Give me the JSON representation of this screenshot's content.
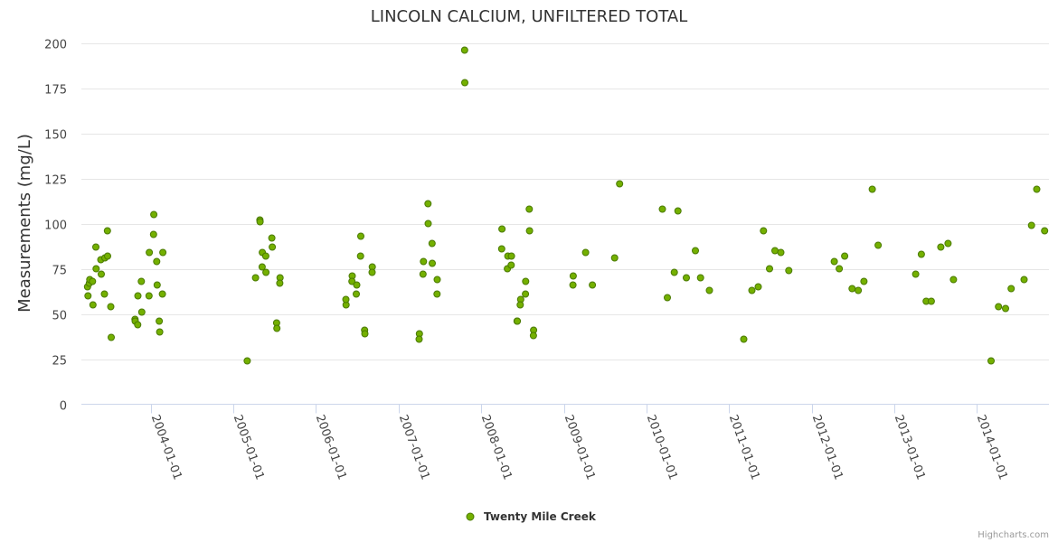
{
  "colors": {
    "marker_fill": "#74B000",
    "marker_stroke": "#4A7A00"
  },
  "credits": "Highcharts.com",
  "chart_data": {
    "type": "scatter",
    "title": "LINCOLN CALCIUM, UNFILTERED TOTAL",
    "xlabel": "",
    "ylabel": "Measurements (mg/L)",
    "ylim": [
      0,
      200
    ],
    "yticks": [
      0,
      25,
      50,
      75,
      100,
      125,
      150,
      175,
      200
    ],
    "xlim": [
      "2003-03-01",
      "2014-11-15"
    ],
    "xticks": [
      "2004-01-01",
      "2005-01-01",
      "2006-01-01",
      "2007-01-01",
      "2008-01-01",
      "2009-01-01",
      "2010-01-01",
      "2011-01-01",
      "2012-01-01",
      "2013-01-01",
      "2014-01-01"
    ],
    "grid": true,
    "legend": "bottom-center",
    "series": [
      {
        "name": "Twenty Mile Creek",
        "points": [
          [
            "2003-03-28",
            65
          ],
          [
            "2003-03-30",
            60
          ],
          [
            "2003-04-05",
            67
          ],
          [
            "2003-04-07",
            69
          ],
          [
            "2003-04-19",
            68
          ],
          [
            "2003-04-21",
            55
          ],
          [
            "2003-05-05",
            75
          ],
          [
            "2003-05-04",
            87
          ],
          [
            "2003-05-26",
            80
          ],
          [
            "2003-05-28",
            72
          ],
          [
            "2003-06-11",
            61
          ],
          [
            "2003-06-13",
            81
          ],
          [
            "2003-06-24",
            96
          ],
          [
            "2003-06-25",
            82
          ],
          [
            "2003-07-09",
            54
          ],
          [
            "2003-07-11",
            37
          ],
          [
            "2003-10-24",
            47
          ],
          [
            "2003-10-25",
            46
          ],
          [
            "2003-11-05",
            44
          ],
          [
            "2003-11-06",
            60
          ],
          [
            "2003-11-23",
            51
          ],
          [
            "2003-11-21",
            68
          ],
          [
            "2003-12-26",
            84
          ],
          [
            "2003-12-25",
            60
          ],
          [
            "2004-01-15",
            105
          ],
          [
            "2004-01-14",
            94
          ],
          [
            "2004-01-30",
            66
          ],
          [
            "2004-01-28",
            79
          ],
          [
            "2004-02-08",
            46
          ],
          [
            "2004-02-10",
            40
          ],
          [
            "2004-02-24",
            84
          ],
          [
            "2004-02-22",
            61
          ],
          [
            "2005-03-03",
            24
          ],
          [
            "2005-04-09",
            70
          ],
          [
            "2005-04-28",
            102
          ],
          [
            "2005-04-29",
            101
          ],
          [
            "2005-05-08",
            76
          ],
          [
            "2005-05-09",
            84
          ],
          [
            "2005-05-24",
            82
          ],
          [
            "2005-05-25",
            73
          ],
          [
            "2005-06-22",
            87
          ],
          [
            "2005-06-20",
            92
          ],
          [
            "2005-07-11",
            45
          ],
          [
            "2005-07-12",
            42
          ],
          [
            "2005-07-26",
            70
          ],
          [
            "2005-07-25",
            67
          ],
          [
            "2006-05-14",
            55
          ],
          [
            "2006-05-13",
            58
          ],
          [
            "2006-06-10",
            71
          ],
          [
            "2006-06-09",
            68
          ],
          [
            "2006-06-30",
            66
          ],
          [
            "2006-06-28",
            61
          ],
          [
            "2006-07-18",
            93
          ],
          [
            "2006-07-17",
            82
          ],
          [
            "2006-08-04",
            41
          ],
          [
            "2006-08-05",
            39
          ],
          [
            "2006-09-07",
            76
          ],
          [
            "2006-09-06",
            73
          ],
          [
            "2007-04-03",
            39
          ],
          [
            "2007-04-02",
            36
          ],
          [
            "2007-04-21",
            79
          ],
          [
            "2007-04-19",
            72
          ],
          [
            "2007-05-11",
            111
          ],
          [
            "2007-05-12",
            100
          ],
          [
            "2007-05-29",
            89
          ],
          [
            "2007-05-30",
            78
          ],
          [
            "2007-06-21",
            69
          ],
          [
            "2007-06-20",
            61
          ],
          [
            "2007-10-20",
            196
          ],
          [
            "2007-10-21",
            178
          ],
          [
            "2008-04-02",
            97
          ],
          [
            "2008-04-01",
            86
          ],
          [
            "2008-04-28",
            82
          ],
          [
            "2008-04-26",
            75
          ],
          [
            "2008-05-14",
            82
          ],
          [
            "2008-05-13",
            77
          ],
          [
            "2008-06-08",
            46
          ],
          [
            "2008-06-09",
            46
          ],
          [
            "2008-06-24",
            58
          ],
          [
            "2008-06-22",
            55
          ],
          [
            "2008-07-16",
            68
          ],
          [
            "2008-07-15",
            61
          ],
          [
            "2008-08-01",
            108
          ],
          [
            "2008-08-02",
            96
          ],
          [
            "2008-08-20",
            41
          ],
          [
            "2008-08-19",
            38
          ],
          [
            "2009-02-11",
            71
          ],
          [
            "2009-02-10",
            66
          ],
          [
            "2009-04-07",
            84
          ],
          [
            "2009-05-07",
            66
          ],
          [
            "2009-08-13",
            81
          ],
          [
            "2009-09-04",
            122
          ],
          [
            "2010-03-12",
            108
          ],
          [
            "2010-04-03",
            59
          ],
          [
            "2010-05-04",
            73
          ],
          [
            "2010-05-20",
            107
          ],
          [
            "2010-06-26",
            70
          ],
          [
            "2010-08-05",
            85
          ],
          [
            "2010-08-28",
            70
          ],
          [
            "2010-10-06",
            63
          ],
          [
            "2011-03-07",
            36
          ],
          [
            "2011-04-12",
            63
          ],
          [
            "2011-05-10",
            65
          ],
          [
            "2011-06-02",
            96
          ],
          [
            "2011-06-29",
            75
          ],
          [
            "2011-07-23",
            85
          ],
          [
            "2011-08-18",
            84
          ],
          [
            "2011-09-22",
            74
          ],
          [
            "2012-04-10",
            79
          ],
          [
            "2012-05-02",
            75
          ],
          [
            "2012-05-26",
            82
          ],
          [
            "2012-06-28",
            64
          ],
          [
            "2012-07-25",
            63
          ],
          [
            "2012-08-19",
            68
          ],
          [
            "2012-09-25",
            119
          ],
          [
            "2012-10-21",
            88
          ],
          [
            "2013-04-05",
            72
          ],
          [
            "2013-04-30",
            83
          ],
          [
            "2013-05-21",
            57
          ],
          [
            "2013-06-13",
            57
          ],
          [
            "2013-07-25",
            87
          ],
          [
            "2013-08-26",
            89
          ],
          [
            "2013-09-19",
            69
          ],
          [
            "2014-03-04",
            24
          ],
          [
            "2014-04-06",
            54
          ],
          [
            "2014-05-07",
            53
          ],
          [
            "2014-06-01",
            64
          ],
          [
            "2014-07-28",
            69
          ],
          [
            "2014-08-30",
            99
          ],
          [
            "2014-09-22",
            119
          ],
          [
            "2014-10-27",
            96
          ]
        ]
      }
    ]
  }
}
